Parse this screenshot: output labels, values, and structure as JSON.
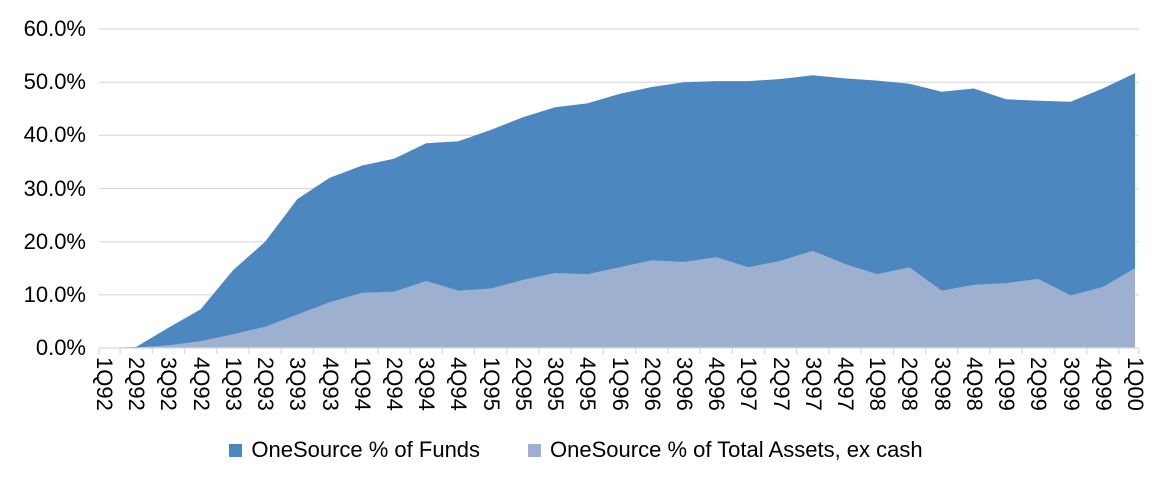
{
  "chart_data": {
    "type": "area",
    "title": "",
    "categories": [
      "1Q92",
      "2Q92",
      "3Q92",
      "4Q92",
      "1Q93",
      "2Q93",
      "3Q93",
      "4Q93",
      "1Q94",
      "2Q94",
      "3Q94",
      "4Q94",
      "1Q95",
      "2Q95",
      "3Q95",
      "4Q95",
      "1Q96",
      "2Q96",
      "3Q96",
      "4Q96",
      "1Q97",
      "2Q97",
      "3Q97",
      "4Q97",
      "1Q98",
      "2Q98",
      "3Q98",
      "4Q98",
      "1Q99",
      "2Q99",
      "3Q99",
      "4Q99",
      "1Q00"
    ],
    "series": [
      {
        "name": "OneSource % of Funds",
        "color": "#4d87bf",
        "values": [
          0.0,
          0.2,
          3.8,
          7.3,
          14.6,
          20.0,
          28.0,
          32.0,
          34.3,
          35.6,
          38.5,
          38.9,
          41.0,
          43.4,
          45.3,
          46.0,
          47.8,
          49.1,
          50.0,
          50.2,
          50.2,
          50.6,
          51.3,
          50.7,
          50.3,
          49.7,
          48.2,
          48.8,
          46.8,
          46.5,
          46.3,
          48.8,
          51.7
        ]
      },
      {
        "name": "OneSource % of Total Assets, ex cash",
        "color": "#9db0cf",
        "values": [
          0.0,
          0.1,
          0.5,
          1.3,
          2.6,
          4.0,
          6.3,
          8.6,
          10.4,
          10.6,
          12.6,
          10.8,
          11.2,
          12.8,
          14.1,
          13.9,
          15.2,
          16.5,
          16.2,
          17.1,
          15.2,
          16.4,
          18.3,
          15.8,
          13.9,
          15.2,
          10.8,
          11.9,
          12.2,
          13.0,
          9.9,
          11.5,
          15.0
        ]
      }
    ],
    "xlabel": "",
    "ylabel": "",
    "ylim": [
      0,
      60
    ],
    "ytick_labels": [
      "0.0%",
      "10.0%",
      "20.0%",
      "30.0%",
      "40.0%",
      "50.0%",
      "60.0%"
    ],
    "grid": true,
    "legend_position": "bottom",
    "series_overlap": true
  },
  "styles": {
    "gridline_color": "#d9d9d9",
    "tick_color": "#d9d9d9",
    "text_color": "#000000",
    "background": "#ffffff"
  }
}
